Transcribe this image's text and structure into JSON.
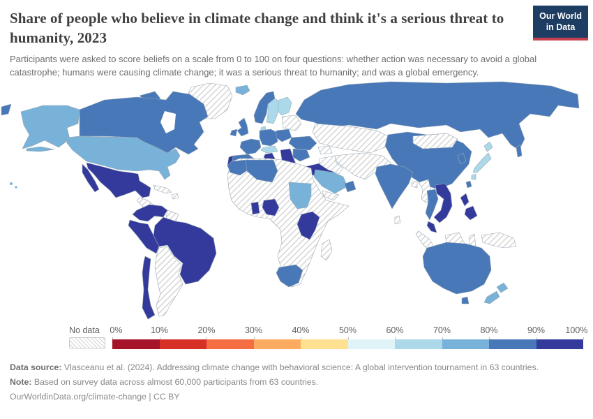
{
  "header": {
    "title": "Share of people who believe in climate change and think it's a serious threat to humanity, 2023",
    "subtitle": "Participants were asked to score beliefs on a scale from 0 to 100 on four questions: whether action was necessary to avoid a global catastrophe; humans were causing climate change; it was a serious threat to humanity; and was a global emergency.",
    "logo": {
      "line1": "Our World",
      "line2": "in Data"
    }
  },
  "palette": {
    "band_0_10": "#a51429",
    "band_10_20": "#d73027",
    "band_20_30": "#f46d43",
    "band_30_40": "#fcab60",
    "band_40_50": "#fee090",
    "band_50_60": "#e0f3f8",
    "band_60_70": "#abd9e9",
    "band_70_80": "#79b2d8",
    "band_80_90": "#4878b8",
    "band_90_100": "#333a9c",
    "logo_background": "#1d3d63",
    "logo_underline": "#c7404f",
    "hatch_line": "#d2d2d2",
    "country_border": "#9aa8b4"
  },
  "legend": {
    "no_data_label": "No data",
    "tick_labels": [
      "0%",
      "10%",
      "20%",
      "30%",
      "40%",
      "50%",
      "60%",
      "70%",
      "80%",
      "90%",
      "100%"
    ],
    "segment_colors": [
      "#a51429",
      "#d73027",
      "#f46d43",
      "#fcab60",
      "#fee090",
      "#e0f3f8",
      "#abd9e9",
      "#79b2d8",
      "#4878b8",
      "#333a9c"
    ]
  },
  "chart_data": {
    "type": "choropleth",
    "title": "Share of people who believe in climate change and think it's a serious threat to humanity",
    "year": "2023",
    "unit": "%",
    "scale": {
      "min": 0,
      "max": 100,
      "ticks": [
        "0%",
        "10%",
        "20%",
        "30%",
        "40%",
        "50%",
        "60%",
        "70%",
        "80%",
        "90%",
        "100%"
      ],
      "colors": [
        "#a51429",
        "#d73027",
        "#f46d43",
        "#fcab60",
        "#fee090",
        "#e0f3f8",
        "#abd9e9",
        "#79b2d8",
        "#4878b8",
        "#333a9c"
      ]
    },
    "observed_bands": {
      "90_100": [
        "Mexico",
        "Venezuela",
        "Colombia",
        "Ecuador",
        "Peru",
        "Brazil",
        "Chile",
        "Portugal",
        "Italy",
        "Greece",
        "Serbia",
        "Turkey",
        "Ghana",
        "Nigeria",
        "Uganda",
        "Kenya",
        "Tanzania",
        "Vietnam",
        "Laos",
        "Malaysia",
        "Philippines"
      ],
      "80_90": [
        "Canada",
        "United Kingdom",
        "Ireland",
        "France",
        "Spain",
        "Germany",
        "Poland",
        "Ukraine",
        "Norway",
        "Romania",
        "Russia",
        "China",
        "India",
        "South Korea",
        "Thailand",
        "Taiwan",
        "United Arab Emirates",
        "Morocco",
        "Algeria",
        "South Africa",
        "Australia"
      ],
      "70_80": [
        "United States",
        "Iceland",
        "New Zealand",
        "Saudi Arabia",
        "Sudan"
      ],
      "60_70": [
        "Sweden",
        "Finland",
        "Denmark",
        "Austria",
        "Japan"
      ],
      "no_data": [
        "Greenland",
        "Central America",
        "Cuba",
        "Argentina",
        "Bolivia",
        "Paraguay",
        "Guyana",
        "Baltic states",
        "Kazakhstan",
        "Mongolia",
        "Iran",
        "Pakistan",
        "Afghanistan",
        "Iraq",
        "Egypt",
        "Libya",
        "most of Africa",
        "Madagascar",
        "Myanmar",
        "Sri Lanka",
        "Indonesia",
        "Papua New Guinea"
      ]
    }
  },
  "footer": {
    "source_label": "Data source:",
    "source_text": " Vlasceanu et al. (2024). Addressing climate change with behavioral science: A global intervention tournament in 63 countries.",
    "note_label": "Note:",
    "note_text": " Based on survey data across almost 60,000 participants from 63 countries.",
    "url_line": "OurWorldinData.org/climate-change | CC BY"
  }
}
